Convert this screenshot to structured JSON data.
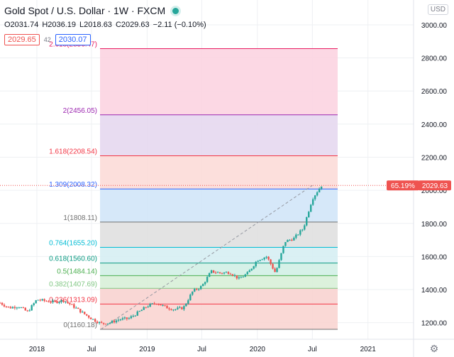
{
  "header": {
    "title": "Gold Spot / U.S. Dollar · 1W · FXCM",
    "ohlc": {
      "open": "O2031.74",
      "high": "H2036.19",
      "low": "L2018.63",
      "close": "C2029.63",
      "change": "−2.11 (−0.10%)"
    },
    "sell_price": "2029.65",
    "spread": "42",
    "buy_price": "2030.07"
  },
  "currency_button": "USD",
  "colors": {
    "up": "#26a69a",
    "down": "#ef5350",
    "grid": "#eef0f3"
  },
  "chart_data": {
    "type": "candlestick",
    "symbol": "Gold Spot / U.S. Dollar",
    "interval": "1W",
    "y_axis": {
      "min": 1100,
      "max": 3150,
      "ticks": [
        "3000.00",
        "2800.00",
        "2600.00",
        "2400.00",
        "2200.00",
        "2000.00",
        "1800.00",
        "1600.00",
        "1400.00",
        "1200.00"
      ]
    },
    "x_axis": {
      "start": "2017-09",
      "end": "2021-06",
      "labels": [
        {
          "label": "2018",
          "date": "2018-01"
        },
        {
          "label": "Jul",
          "date": "2018-07"
        },
        {
          "label": "2019",
          "date": "2019-01"
        },
        {
          "label": "Jul",
          "date": "2019-07"
        },
        {
          "label": "2020",
          "date": "2020-01"
        },
        {
          "label": "Jul",
          "date": "2020-07"
        },
        {
          "label": "2021",
          "date": "2021-01"
        }
      ]
    },
    "price_path": [
      [
        "2017-09",
        1320
      ],
      [
        "2017-10",
        1290
      ],
      [
        "2017-11",
        1300
      ],
      [
        "2017-12",
        1265
      ],
      [
        "2018-01",
        1340
      ],
      [
        "2018-02",
        1330
      ],
      [
        "2018-03",
        1325
      ],
      [
        "2018-04",
        1335
      ],
      [
        "2018-05",
        1300
      ],
      [
        "2018-06",
        1260
      ],
      [
        "2018-07",
        1225
      ],
      [
        "2018-08",
        1195
      ],
      [
        "2018-09",
        1200
      ],
      [
        "2018-10",
        1220
      ],
      [
        "2018-11",
        1225
      ],
      [
        "2018-12",
        1260
      ],
      [
        "2019-01",
        1300
      ],
      [
        "2019-02",
        1320
      ],
      [
        "2019-03",
        1295
      ],
      [
        "2019-04",
        1280
      ],
      [
        "2019-05",
        1290
      ],
      [
        "2019-06",
        1390
      ],
      [
        "2019-07",
        1420
      ],
      [
        "2019-08",
        1510
      ],
      [
        "2019-09",
        1500
      ],
      [
        "2019-10",
        1505
      ],
      [
        "2019-11",
        1465
      ],
      [
        "2019-12",
        1500
      ],
      [
        "2020-01",
        1580
      ],
      [
        "2020-02",
        1600
      ],
      [
        "2020-03",
        1500
      ],
      [
        "2020-04",
        1690
      ],
      [
        "2020-05",
        1710
      ],
      [
        "2020-06",
        1770
      ],
      [
        "2020-07",
        1950
      ],
      [
        "2020-07-31",
        2029.63
      ]
    ],
    "trend_line": {
      "from": {
        "date": "2018-08",
        "price": 1160.18
      },
      "to": {
        "date": "2020-07",
        "price": 2029.63
      }
    },
    "fib_levels": [
      {
        "label": "2.618(2856.47)",
        "price": 2856.47,
        "color": "#e91e63",
        "fill": "#fcd4e1"
      },
      {
        "label": "2(2456.05)",
        "price": 2456.05,
        "color": "#9c27b0",
        "fill": "#e6d8ef"
      },
      {
        "label": "1.618(2208.54)",
        "price": 2208.54,
        "color": "#f23645",
        "fill": "#fcdcd8"
      },
      {
        "label": "1.309(2008.32)",
        "price": 2008.32,
        "color": "#2962ff",
        "fill": "#d2e6f8"
      },
      {
        "label": "1(1808.11)",
        "price": 1808.11,
        "color": "#707070",
        "fill": "#e0e0e0"
      },
      {
        "label": "0.764(1655.20)",
        "price": 1655.2,
        "color": "#00bcd4",
        "fill": "#d6eef3"
      },
      {
        "label": "0.618(1560.60)",
        "price": 1560.6,
        "color": "#089981",
        "fill": "#d2efe6"
      },
      {
        "label": "0.5(1484.14)",
        "price": 1484.14,
        "color": "#4caf50",
        "fill": "#d8f0d8"
      },
      {
        "label": "0.382(1407.69)",
        "price": 1407.69,
        "color": "#81c784",
        "fill": "#f8d3d0"
      },
      {
        "label": "0.236(1313.09)",
        "price": 1313.09,
        "color": "#f23645",
        "fill": "#f9d5d2"
      },
      {
        "label": "0(1160.18)",
        "price": 1160.18,
        "color": "#707070",
        "fill": null
      }
    ],
    "current_price": {
      "value": 2029.63,
      "label": "2029.63",
      "percent": "65.19%"
    }
  }
}
